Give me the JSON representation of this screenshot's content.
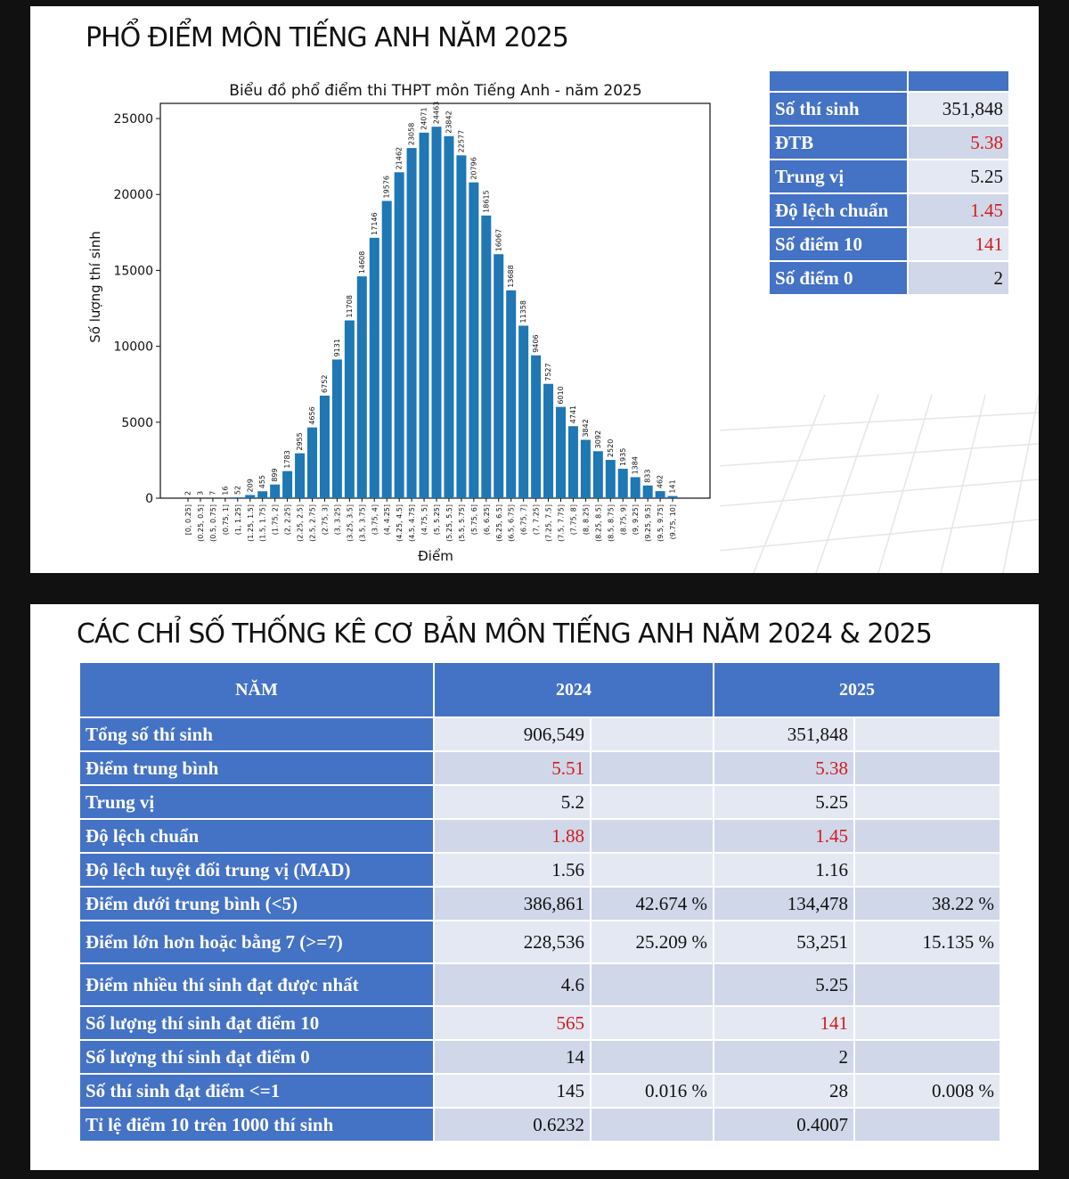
{
  "slide1": {
    "title": "PHỔ ĐIỂM MÔN TIẾNG ANH NĂM 2025",
    "stats": [
      {
        "label": "Số thí sinh",
        "value": "351,848",
        "highlight": false
      },
      {
        "label": "ĐTB",
        "value": "5.38",
        "highlight": true
      },
      {
        "label": "Trung vị",
        "value": "5.25",
        "highlight": false
      },
      {
        "label": "Độ lệch chuẩn",
        "value": "1.45",
        "highlight": true
      },
      {
        "label": "Số điểm 10",
        "value": "141",
        "highlight": true
      },
      {
        "label": "Số điểm 0",
        "value": "2",
        "highlight": false
      }
    ]
  },
  "slide2": {
    "title": "CÁC CHỈ SỐ THỐNG KÊ CƠ BẢN MÔN TIẾNG ANH NĂM 2024 & 2025",
    "headers": [
      "NĂM",
      "2024",
      "2025"
    ],
    "rows": [
      {
        "label": "Tổng số thí sinh",
        "v2024": "906,549",
        "p2024": "",
        "v2025": "351,848",
        "p2025": "",
        "highlight": false
      },
      {
        "label": "Điểm trung bình",
        "v2024": "5.51",
        "p2024": "",
        "v2025": "5.38",
        "p2025": "",
        "highlight": true
      },
      {
        "label": "Trung vị",
        "v2024": "5.2",
        "p2024": "",
        "v2025": "5.25",
        "p2025": "",
        "highlight": false
      },
      {
        "label": "Độ lệch chuẩn",
        "v2024": "1.88",
        "p2024": "",
        "v2025": "1.45",
        "p2025": "",
        "highlight": true
      },
      {
        "label": "Độ lệch tuyệt đối trung vị (MAD)",
        "v2024": "1.56",
        "p2024": "",
        "v2025": "1.16",
        "p2025": "",
        "highlight": false
      },
      {
        "label": "Điểm dưới trung bình (<5)",
        "v2024": "386,861",
        "p2024": "42.674 %",
        "v2025": "134,478",
        "p2025": "38.22 %",
        "highlight": false
      },
      {
        "label": "Điểm lớn hơn hoặc bằng 7 (>=7)",
        "v2024": "228,536",
        "p2024": "25.209 %",
        "v2025": "53,251",
        "p2025": "15.135 %",
        "highlight": false,
        "tall": true
      },
      {
        "label": "Điểm nhiều thí sinh đạt được nhất",
        "v2024": "4.6",
        "p2024": "",
        "v2025": "5.25",
        "p2025": "",
        "highlight": false,
        "tall": true
      },
      {
        "label": "Số lượng thí sinh đạt điểm 10",
        "v2024": "565",
        "p2024": "",
        "v2025": "141",
        "p2025": "",
        "highlight": true
      },
      {
        "label": "Số lượng thí sinh đạt điểm 0",
        "v2024": "14",
        "p2024": "",
        "v2025": "2",
        "p2025": "",
        "highlight": false
      },
      {
        "label": "Số thí sinh đạt điểm <=1",
        "v2024": "145",
        "p2024": "0.016 %",
        "v2025": "28",
        "p2025": "0.008 %",
        "highlight": false
      },
      {
        "label": "Tỉ lệ điểm 10 trên 1000 thí sinh",
        "v2024": "0.6232",
        "p2024": "",
        "v2025": "0.4007",
        "p2025": "",
        "highlight": false
      }
    ]
  },
  "colors": {
    "bar": "#1f77b4",
    "header": "#4472c4",
    "highlight": "#d01c1c"
  },
  "chart_data": {
    "type": "bar",
    "title": "Biểu đồ phổ điểm thi THPT môn Tiếng Anh - năm 2025",
    "xlabel": "Điểm",
    "ylabel": "Số lượng thí sinh",
    "ylim": [
      0,
      26000
    ],
    "yticks": [
      0,
      5000,
      10000,
      15000,
      20000,
      25000
    ],
    "categories": [
      "[0, 0.25]",
      "(0.25, 0.5]",
      "(0.5, 0.75]",
      "(0.75, 1]",
      "(1, 1.25]",
      "(1.25, 1.5]",
      "(1.5, 1.75]",
      "(1.75, 2]",
      "(2, 2.25]",
      "(2.25, 2.5]",
      "(2.5, 2.75]",
      "(2.75, 3]",
      "(3, 3.25]",
      "(3.25, 3.5]",
      "(3.5, 3.75]",
      "(3.75, 4]",
      "(4, 4.25]",
      "(4.25, 4.5]",
      "(4.5, 4.75]",
      "(4.75, 5]",
      "(5, 5.25]",
      "(5.25, 5.5]",
      "(5.5, 5.75]",
      "(5.75, 6]",
      "(6, 6.25]",
      "(6.25, 6.5]",
      "(6.5, 6.75]",
      "(6.75, 7]",
      "(7, 7.25]",
      "(7.25, 7.5]",
      "(7.5, 7.75]",
      "(7.75, 8]",
      "(8, 8.25]",
      "(8.25, 8.5]",
      "(8.5, 8.75]",
      "(8.75, 9]",
      "(9, 9.25]",
      "(9.25, 9.5]",
      "(9.5, 9.75]",
      "(9.75, 10]"
    ],
    "values": [
      2,
      3,
      7,
      16,
      52,
      209,
      455,
      899,
      1783,
      2955,
      4656,
      6752,
      9131,
      11708,
      14608,
      17146,
      19576,
      21462,
      23058,
      24071,
      24463,
      23842,
      22577,
      20796,
      18615,
      16067,
      13688,
      11358,
      9406,
      7527,
      6010,
      4741,
      3842,
      3092,
      2520,
      1935,
      1384,
      833,
      462,
      141
    ]
  }
}
